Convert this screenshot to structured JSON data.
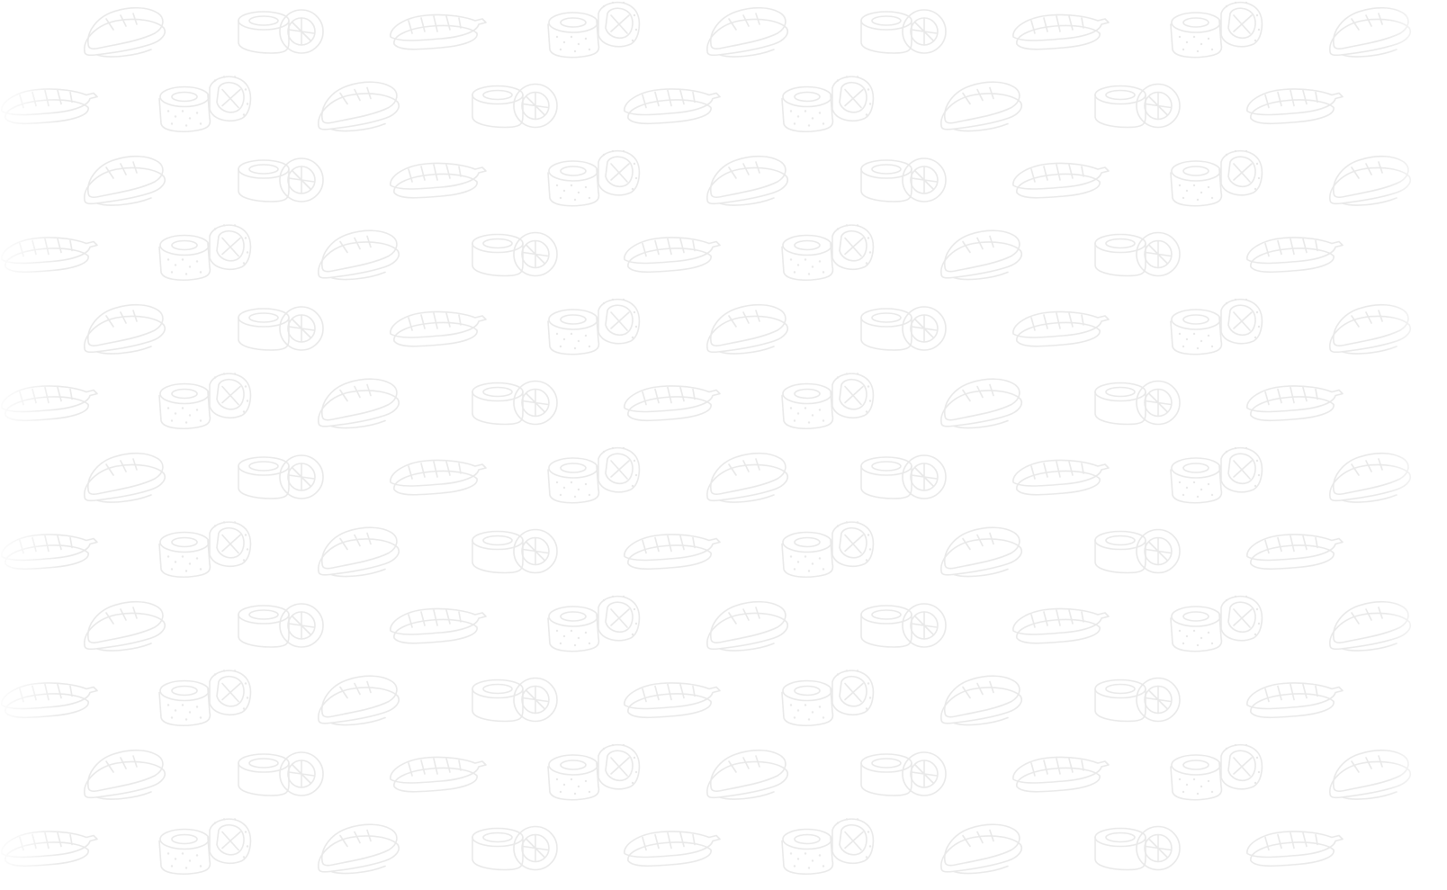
{
  "background": {
    "color": "#ffffff",
    "pattern_line_color": "#e9e9e9",
    "motifs": [
      "nigiri-salmon-icon",
      "maki-roll-icon",
      "nigiri-shrimp-icon",
      "sesame-roll-icon"
    ]
  }
}
